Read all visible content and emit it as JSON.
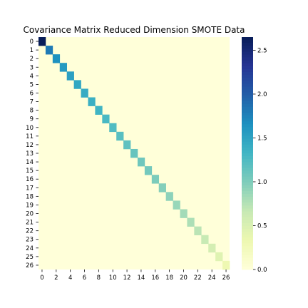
{
  "chart_data": {
    "type": "heatmap",
    "title": "Covariance Matrix Reduced Dimension SMOTE Data",
    "xlabel": "",
    "ylabel": "",
    "size": 27,
    "colormap": "YlGnBu",
    "vmin": 0.0,
    "vmax": 2.65,
    "off_diagonal_value": 0.0,
    "diagonal": [
      2.65,
      1.8,
      1.65,
      1.58,
      1.52,
      1.46,
      1.42,
      1.38,
      1.33,
      1.28,
      1.24,
      1.2,
      1.16,
      1.12,
      1.08,
      1.05,
      1.01,
      0.97,
      0.93,
      0.88,
      0.83,
      0.78,
      0.72,
      0.65,
      0.55,
      0.45,
      0.32
    ],
    "x_tick_labels": [
      "0",
      "2",
      "4",
      "6",
      "8",
      "10",
      "12",
      "14",
      "16",
      "18",
      "20",
      "22",
      "24",
      "26"
    ],
    "y_tick_labels": [
      "0",
      "1",
      "2",
      "3",
      "4",
      "5",
      "6",
      "7",
      "8",
      "9",
      "10",
      "11",
      "12",
      "13",
      "14",
      "15",
      "16",
      "17",
      "18",
      "19",
      "20",
      "21",
      "22",
      "23",
      "24",
      "25",
      "26"
    ],
    "colorbar_ticks": [
      "0.0",
      "0.5",
      "1.0",
      "1.5",
      "2.0",
      "2.5"
    ],
    "colorbar_tick_values": [
      0.0,
      0.5,
      1.0,
      1.5,
      2.0,
      2.5
    ]
  }
}
